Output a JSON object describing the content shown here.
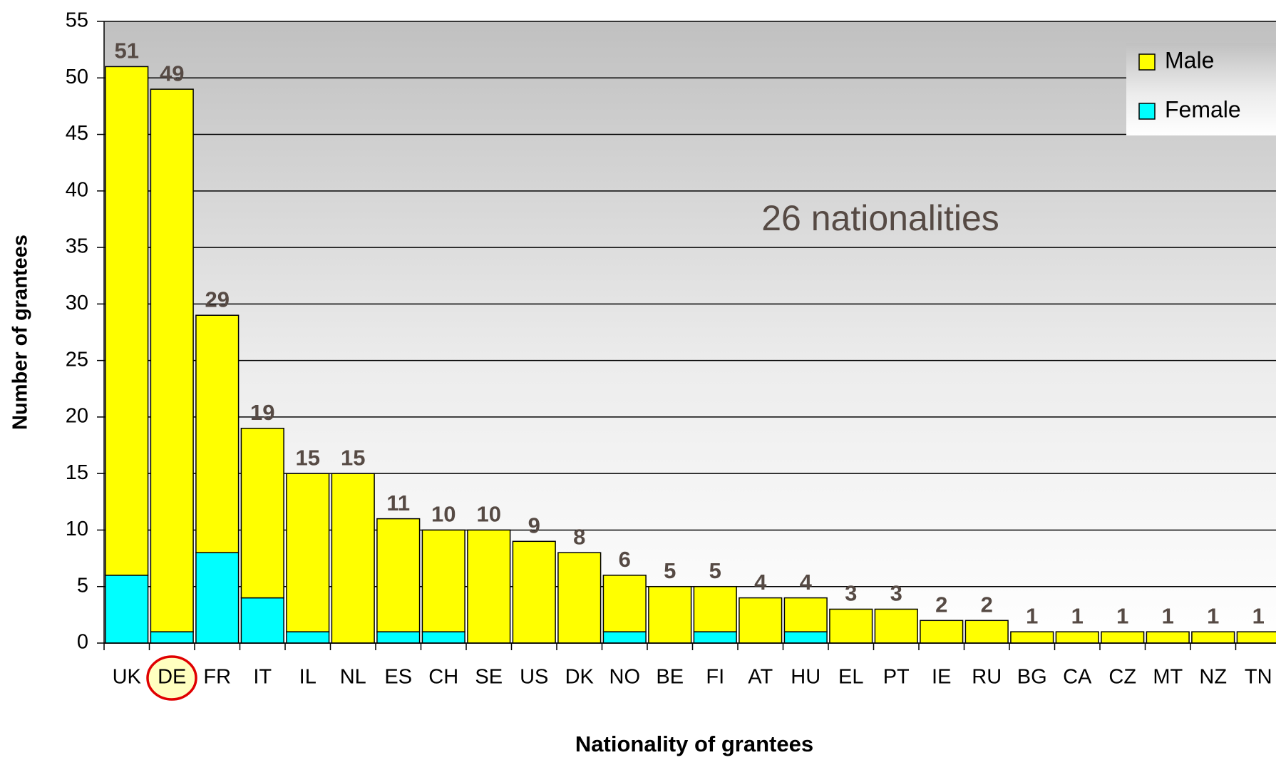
{
  "chart_data": {
    "type": "bar",
    "stacked": true,
    "annotation": "26 nationalities",
    "x_label": "Nationality of grantees",
    "y_label": "Number of grantees",
    "categories": [
      "UK",
      "DE",
      "FR",
      "IT",
      "IL",
      "NL",
      "ES",
      "CH",
      "SE",
      "US",
      "DK",
      "NO",
      "BE",
      "FI",
      "AT",
      "HU",
      "EL",
      "PT",
      "IE",
      "RU",
      "BG",
      "CA",
      "CZ",
      "MT",
      "NZ",
      "TN"
    ],
    "series": [
      {
        "name": "Female",
        "color": "#00ffff",
        "values": [
          6,
          1,
          8,
          4,
          1,
          0,
          1,
          1,
          0,
          0,
          0,
          1,
          0,
          1,
          0,
          1,
          0,
          0,
          0,
          0,
          0,
          0,
          0,
          0,
          0,
          0
        ]
      },
      {
        "name": "Male",
        "color": "#ffff00",
        "values": [
          45,
          48,
          21,
          15,
          14,
          15,
          10,
          9,
          10,
          9,
          8,
          5,
          5,
          4,
          4,
          3,
          3,
          3,
          2,
          2,
          1,
          1,
          1,
          1,
          1,
          1
        ]
      }
    ],
    "totals": [
      51,
      49,
      29,
      19,
      15,
      15,
      11,
      10,
      10,
      9,
      8,
      6,
      5,
      5,
      4,
      4,
      3,
      3,
      2,
      2,
      1,
      1,
      1,
      1,
      1,
      1
    ],
    "ylim": [
      0,
      55
    ],
    "yticks": [
      0,
      5,
      10,
      15,
      20,
      25,
      30,
      35,
      40,
      45,
      50,
      55
    ],
    "grid": true,
    "legend": "upper right"
  }
}
